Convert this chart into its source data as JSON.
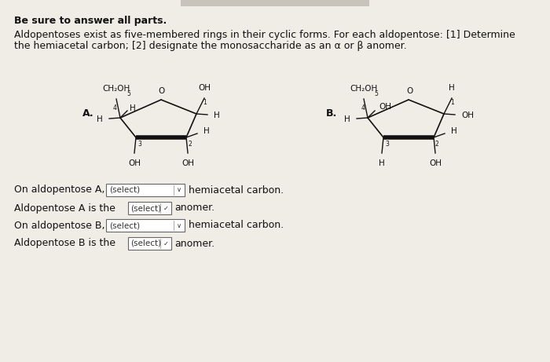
{
  "bg_color": "#f0ede6",
  "text_color": "#111111",
  "ring_color": "#111111",
  "title": "Be sure to answer all parts.",
  "intro1": "Aldopentoses exist as five-membered rings in their cyclic forms. For each aldopentose: [1] Determine",
  "intro2": "the hemiacetal carbon; [2] designate the monosaccharide as an α or β anomer.",
  "q1a": "On aldopentose A,",
  "q1b": "hemiacetal carbon.",
  "q2a": "Aldopentose A is the",
  "q2b": "anomer.",
  "q3a": "On aldopentose B,",
  "q3b": "hemiacetal carbon.",
  "q4a": "Aldopentose B is the",
  "q4b": "anomer.",
  "select_label": "(select)",
  "select_v": "✓"
}
